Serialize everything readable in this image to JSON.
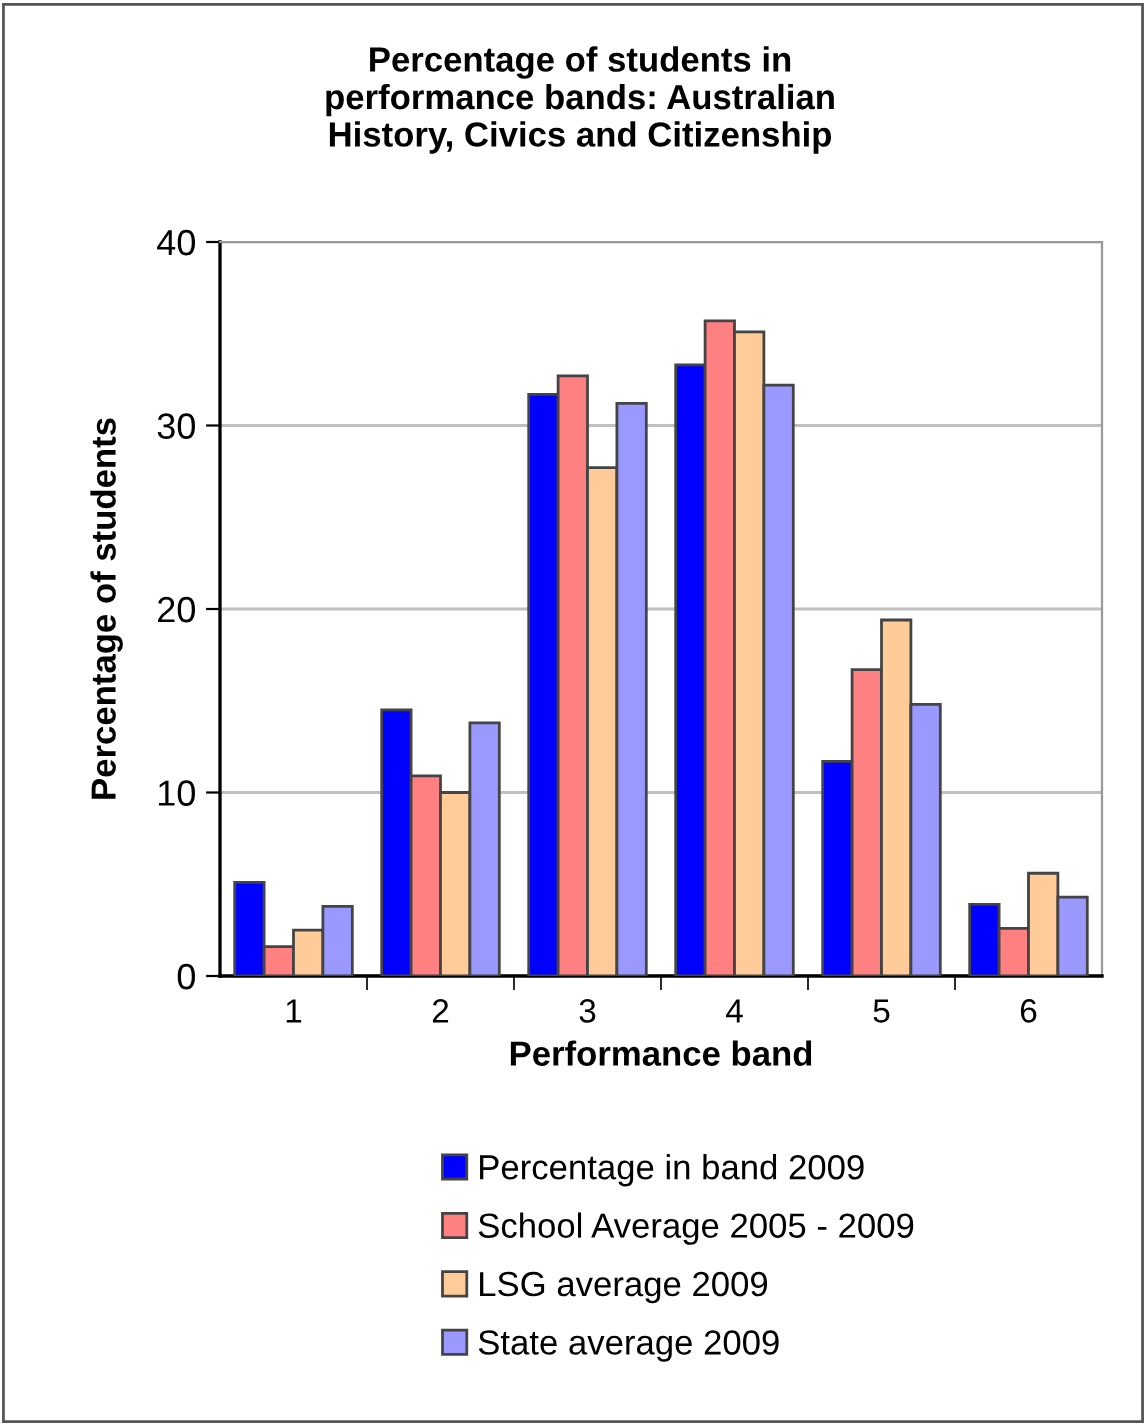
{
  "chart_data": {
    "type": "bar",
    "title": "Percentage of students in\nperformance bands: Australian\nHistory, Civics and Citizenship",
    "xlabel": "Performance band",
    "ylabel": "Percentage of students",
    "categories": [
      "1",
      "2",
      "3",
      "4",
      "5",
      "6"
    ],
    "series": [
      {
        "name": "Percentage in band 2009",
        "color": "#0000ff",
        "values": [
          5.1,
          14.5,
          31.7,
          33.3,
          11.7,
          3.9
        ]
      },
      {
        "name": "School Average 2005 - 2009",
        "color": "#ff8080",
        "values": [
          1.6,
          10.9,
          32.7,
          35.7,
          16.7,
          2.6
        ]
      },
      {
        "name": "LSG average 2009",
        "color": "#ffcc99",
        "values": [
          2.5,
          10.0,
          27.7,
          35.1,
          19.4,
          5.6
        ]
      },
      {
        "name": "State average 2009",
        "color": "#9999ff",
        "values": [
          3.8,
          13.8,
          31.2,
          32.2,
          14.8,
          4.3
        ]
      }
    ],
    "ylim": [
      0,
      40
    ],
    "yticks": [
      0,
      10,
      20,
      30,
      40
    ],
    "grid": "y",
    "legend": "bottom"
  }
}
